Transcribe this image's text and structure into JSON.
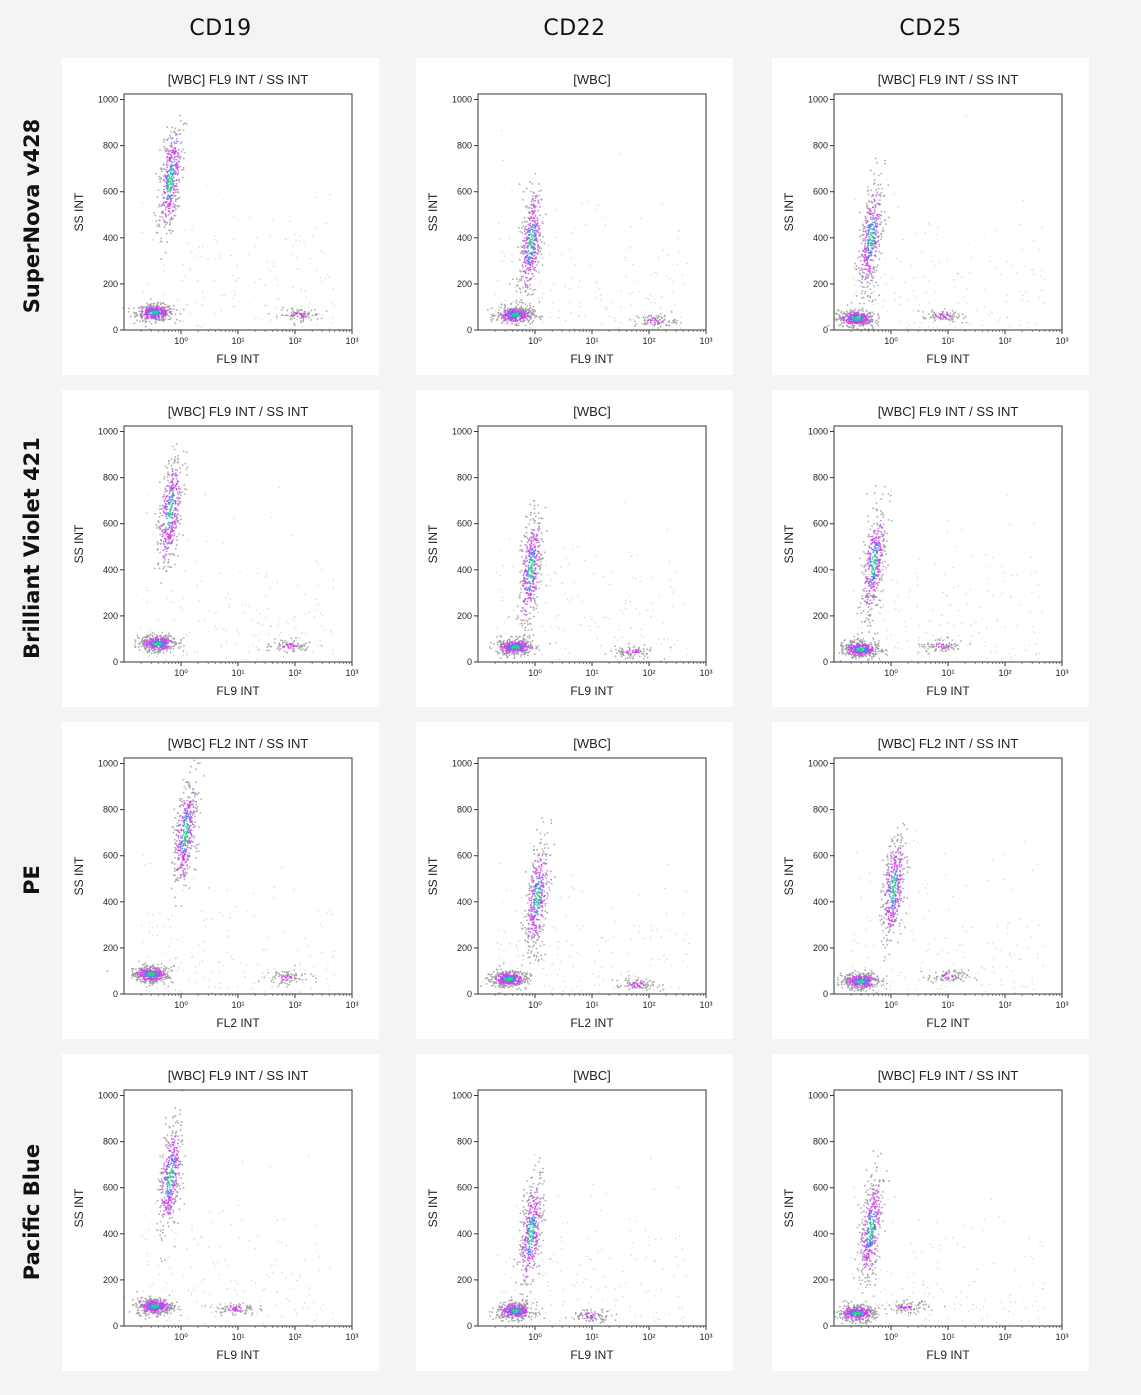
{
  "columns": [
    "CD19",
    "CD22",
    "CD25"
  ],
  "rows": [
    "SuperNova v428",
    "Brilliant Violet 421",
    "PE",
    "Pacific Blue"
  ],
  "chart_data": [
    {
      "type": "scatter",
      "row": "SuperNova v428",
      "column": "CD19",
      "title": "[WBC] FL9 INT / SS INT",
      "xlabel": "FL9 INT",
      "ylabel": "SS INT",
      "xscale": "log",
      "xticks": [
        "10⁰",
        "10¹",
        "10²",
        "10³"
      ],
      "xlim": [
        0.1,
        1000
      ],
      "yticks": [
        0,
        200,
        400,
        600,
        800,
        1000
      ],
      "ylim": [
        0,
        1024
      ],
      "populations": [
        {
          "name": "",
          "x": 0.35,
          "y": 75,
          "density": "high"
        },
        {
          "name": "",
          "x": 0.65,
          "y": 650,
          "density": "high"
        },
        {
          "name": "",
          "x": 120,
          "y": 65,
          "density": "low"
        }
      ]
    },
    {
      "type": "scatter",
      "row": "SuperNova v428",
      "column": "CD22",
      "title": "[WBC]",
      "xlabel": "FL9 INT",
      "ylabel": "SS INT",
      "xscale": "log",
      "xticks": [
        "10⁰",
        "10¹",
        "10²",
        "10³"
      ],
      "xlim": [
        0.1,
        1000
      ],
      "yticks": [
        0,
        200,
        400,
        600,
        800,
        1000
      ],
      "ylim": [
        0,
        1024
      ],
      "populations": [
        {
          "name": "",
          "x": 0.45,
          "y": 65,
          "density": "high"
        },
        {
          "name": "",
          "x": 0.85,
          "y": 380,
          "density": "high"
        },
        {
          "name": "",
          "x": 130,
          "y": 40,
          "density": "low"
        }
      ]
    },
    {
      "type": "scatter",
      "row": "SuperNova v428",
      "column": "CD25",
      "title": "[WBC] FL9 INT / SS INT",
      "xlabel": "FL9 INT",
      "ylabel": "SS INT",
      "xscale": "log",
      "xticks": [
        "10⁰",
        "10¹",
        "10²",
        "10³"
      ],
      "xlim": [
        0.1,
        1000
      ],
      "yticks": [
        0,
        200,
        400,
        600,
        800,
        1000
      ],
      "ylim": [
        0,
        1024
      ],
      "populations": [
        {
          "name": "",
          "x": 0.25,
          "y": 50,
          "density": "high"
        },
        {
          "name": "",
          "x": 0.45,
          "y": 400,
          "density": "high"
        },
        {
          "name": "",
          "x": 8,
          "y": 60,
          "density": "low"
        }
      ]
    },
    {
      "type": "scatter",
      "row": "Brilliant Violet 421",
      "column": "CD19",
      "title": "[WBC] FL9 INT / SS INT",
      "xlabel": "FL9 INT",
      "ylabel": "SS INT",
      "xscale": "log",
      "xticks": [
        "10⁰",
        "10¹",
        "10²",
        "10³"
      ],
      "xlim": [
        0.1,
        1000
      ],
      "yticks": [
        0,
        200,
        400,
        600,
        800,
        1000
      ],
      "ylim": [
        0,
        1024
      ],
      "populations": [
        {
          "name": "",
          "x": 0.4,
          "y": 80,
          "density": "high"
        },
        {
          "name": "",
          "x": 0.65,
          "y": 650,
          "density": "high"
        },
        {
          "name": "",
          "x": 80,
          "y": 70,
          "density": "low"
        }
      ]
    },
    {
      "type": "scatter",
      "row": "Brilliant Violet 421",
      "column": "CD22",
      "title": "[WBC]",
      "xlabel": "FL9 INT",
      "ylabel": "SS INT",
      "xscale": "log",
      "xticks": [
        "10⁰",
        "10¹",
        "10²",
        "10³"
      ],
      "xlim": [
        0.1,
        1000
      ],
      "yticks": [
        0,
        200,
        400,
        600,
        800,
        1000
      ],
      "ylim": [
        0,
        1024
      ],
      "populations": [
        {
          "name": "",
          "x": 0.45,
          "y": 65,
          "density": "high"
        },
        {
          "name": "",
          "x": 0.85,
          "y": 400,
          "density": "high"
        },
        {
          "name": "",
          "x": 50,
          "y": 45,
          "density": "low"
        }
      ]
    },
    {
      "type": "scatter",
      "row": "Brilliant Violet 421",
      "column": "CD25",
      "title": "[WBC] FL9 INT / SS INT",
      "xlabel": "FL9 INT",
      "ylabel": "SS INT",
      "xscale": "log",
      "xticks": [
        "10⁰",
        "10¹",
        "10²",
        "10³"
      ],
      "xlim": [
        0.1,
        1000
      ],
      "yticks": [
        0,
        200,
        400,
        600,
        800,
        1000
      ],
      "ylim": [
        0,
        1024
      ],
      "populations": [
        {
          "name": "",
          "x": 0.3,
          "y": 55,
          "density": "high"
        },
        {
          "name": "",
          "x": 0.5,
          "y": 430,
          "density": "high"
        },
        {
          "name": "",
          "x": 8,
          "y": 70,
          "density": "low"
        }
      ]
    },
    {
      "type": "scatter",
      "row": "PE",
      "column": "CD19",
      "title": "[WBC] FL2 INT / SS INT",
      "xlabel": "FL2 INT",
      "ylabel": "SS INT",
      "xscale": "log",
      "xticks": [
        "10⁰",
        "10¹",
        "10²",
        "10³"
      ],
      "xlim": [
        0.1,
        1000
      ],
      "yticks": [
        0,
        200,
        400,
        600,
        800,
        1000
      ],
      "ylim": [
        0,
        1024
      ],
      "populations": [
        {
          "name": "",
          "x": 0.3,
          "y": 85,
          "density": "high"
        },
        {
          "name": "",
          "x": 1.2,
          "y": 700,
          "density": "high"
        },
        {
          "name": "",
          "x": 70,
          "y": 70,
          "density": "low"
        }
      ]
    },
    {
      "type": "scatter",
      "row": "PE",
      "column": "CD22",
      "title": "[WBC]",
      "xlabel": "FL2 INT",
      "ylabel": "SS INT",
      "xscale": "log",
      "xticks": [
        "10⁰",
        "10¹",
        "10²",
        "10³"
      ],
      "xlim": [
        0.1,
        1000
      ],
      "yticks": [
        0,
        200,
        400,
        600,
        800,
        1000
      ],
      "ylim": [
        0,
        1024
      ],
      "populations": [
        {
          "name": "",
          "x": 0.35,
          "y": 65,
          "density": "high"
        },
        {
          "name": "",
          "x": 1.1,
          "y": 420,
          "density": "high"
        },
        {
          "name": "",
          "x": 60,
          "y": 40,
          "density": "low"
        }
      ]
    },
    {
      "type": "scatter",
      "row": "PE",
      "column": "CD25",
      "title": "[WBC] FL2 INT / SS INT",
      "xlabel": "FL2 INT",
      "ylabel": "SS INT",
      "xscale": "log",
      "xticks": [
        "10⁰",
        "10¹",
        "10²",
        "10³"
      ],
      "xlim": [
        0.1,
        1000
      ],
      "yticks": [
        0,
        200,
        400,
        600,
        800,
        1000
      ],
      "ylim": [
        0,
        1024
      ],
      "populations": [
        {
          "name": "",
          "x": 0.3,
          "y": 55,
          "density": "high"
        },
        {
          "name": "",
          "x": 1.1,
          "y": 450,
          "density": "high"
        },
        {
          "name": "",
          "x": 10,
          "y": 75,
          "density": "low"
        }
      ]
    },
    {
      "type": "scatter",
      "row": "Pacific Blue",
      "column": "CD19",
      "title": "[WBC] FL9 INT / SS INT",
      "xlabel": "FL9 INT",
      "ylabel": "SS INT",
      "xscale": "log",
      "xticks": [
        "10⁰",
        "10¹",
        "10²",
        "10³"
      ],
      "xlim": [
        0.1,
        1000
      ],
      "yticks": [
        0,
        200,
        400,
        600,
        800,
        1000
      ],
      "ylim": [
        0,
        1024
      ],
      "populations": [
        {
          "name": "",
          "x": 0.35,
          "y": 85,
          "density": "high"
        },
        {
          "name": "",
          "x": 0.65,
          "y": 650,
          "density": "high"
        },
        {
          "name": "",
          "x": 9,
          "y": 75,
          "density": "low"
        }
      ]
    },
    {
      "type": "scatter",
      "row": "Pacific Blue",
      "column": "CD22",
      "title": "[WBC]",
      "xlabel": "FL9 INT",
      "ylabel": "SS INT",
      "xscale": "log",
      "xticks": [
        "10⁰",
        "10¹",
        "10²",
        "10³"
      ],
      "xlim": [
        0.1,
        1000
      ],
      "yticks": [
        0,
        200,
        400,
        600,
        800,
        1000
      ],
      "ylim": [
        0,
        1024
      ],
      "populations": [
        {
          "name": "",
          "x": 0.45,
          "y": 65,
          "density": "high"
        },
        {
          "name": "",
          "x": 0.85,
          "y": 400,
          "density": "high"
        },
        {
          "name": "",
          "x": 10,
          "y": 45,
          "density": "low"
        }
      ]
    },
    {
      "type": "scatter",
      "row": "Pacific Blue",
      "column": "CD25",
      "title": "[WBC] FL9 INT / SS INT",
      "xlabel": "FL9 INT",
      "ylabel": "SS INT",
      "xscale": "log",
      "xticks": [
        "10⁰",
        "10¹",
        "10²",
        "10³"
      ],
      "xlim": [
        0.1,
        1000
      ],
      "yticks": [
        0,
        200,
        400,
        600,
        800,
        1000
      ],
      "ylim": [
        0,
        1024
      ],
      "populations": [
        {
          "name": "",
          "x": 0.25,
          "y": 55,
          "density": "high"
        },
        {
          "name": "",
          "x": 0.45,
          "y": 420,
          "density": "high"
        },
        {
          "name": "",
          "x": 2,
          "y": 80,
          "density": "low"
        }
      ]
    }
  ]
}
